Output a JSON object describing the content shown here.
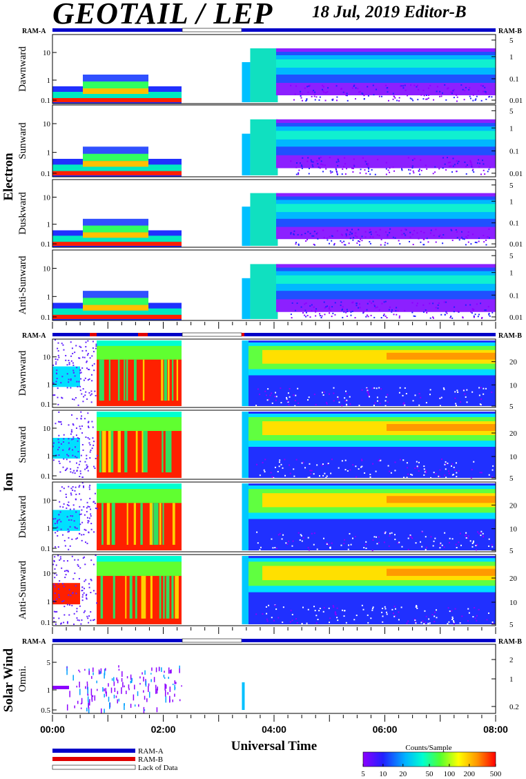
{
  "header": {
    "title": "GEOTAIL / LEP",
    "subtitle": "18 Jul, 2019   Editor-B"
  },
  "chart_data": {
    "type": "heatmap",
    "xlabel": "Universal Time",
    "x_ticks": [
      "00:00",
      "02:00",
      "04:00",
      "06:00",
      "08:00"
    ],
    "x_range_hours": [
      0,
      8
    ],
    "data_gap_hours": [
      2.33,
      3.42
    ],
    "colorbar": {
      "title": "Counts/Sample",
      "ticks": [
        "5",
        "10",
        "20",
        "50",
        "100",
        "200",
        "500"
      ],
      "range": [
        5,
        500
      ],
      "scale": "log"
    },
    "legend": [
      {
        "label": "RAM-A",
        "color": "#0000c8"
      },
      {
        "label": "RAM-B",
        "color": "#e00000"
      },
      {
        "label": "Lack of Data",
        "color": "#ffffff"
      }
    ],
    "groups": [
      {
        "name": "Electron",
        "ram_left": "RAM-A",
        "ram_right": "RAM-B",
        "panels": [
          {
            "name": "Dawnward",
            "left_ticks": [
              "10",
              "1",
              "0.1"
            ],
            "right_ticks": [
              "5",
              "1",
              "0.1",
              "0.01"
            ]
          },
          {
            "name": "Sunward",
            "left_ticks": [
              "10",
              "1",
              "0.1"
            ],
            "right_ticks": [
              "5",
              "1",
              "0.1",
              "0.01"
            ]
          },
          {
            "name": "Duskward",
            "left_ticks": [
              "10",
              "1",
              "0.1"
            ],
            "right_ticks": [
              "5",
              "1",
              "0.1",
              "0.01"
            ]
          },
          {
            "name": "Anti-Sunward",
            "left_ticks": [
              "10",
              "1",
              "0.1"
            ],
            "right_ticks": [
              "5",
              "1",
              "0.1",
              "0.01"
            ]
          }
        ]
      },
      {
        "name": "Ion",
        "ram_left": "RAM-A",
        "ram_right": "RAM-B",
        "panels": [
          {
            "name": "Dawnward",
            "left_ticks": [
              "10",
              "1",
              "0.1"
            ],
            "right_ticks": [
              "20",
              "10",
              "5"
            ]
          },
          {
            "name": "Sunward",
            "left_ticks": [
              "10",
              "1",
              "0.1"
            ],
            "right_ticks": [
              "20",
              "10",
              "5"
            ]
          },
          {
            "name": "Duskward",
            "left_ticks": [
              "10",
              "1",
              "0.1"
            ],
            "right_ticks": [
              "20",
              "10",
              "5"
            ]
          },
          {
            "name": "Anti-Sunward",
            "left_ticks": [
              "10",
              "1",
              "0.1"
            ],
            "right_ticks": [
              "20",
              "10",
              "5"
            ]
          }
        ]
      },
      {
        "name": "Solar Wind",
        "ram_left": "RAM-A",
        "ram_right": "RAM-B",
        "panels": [
          {
            "name": "Omni.",
            "left_ticks": [
              "5",
              "1",
              "0.5"
            ],
            "right_ticks": [
              "2",
              "1",
              "0.2"
            ]
          }
        ]
      }
    ]
  }
}
